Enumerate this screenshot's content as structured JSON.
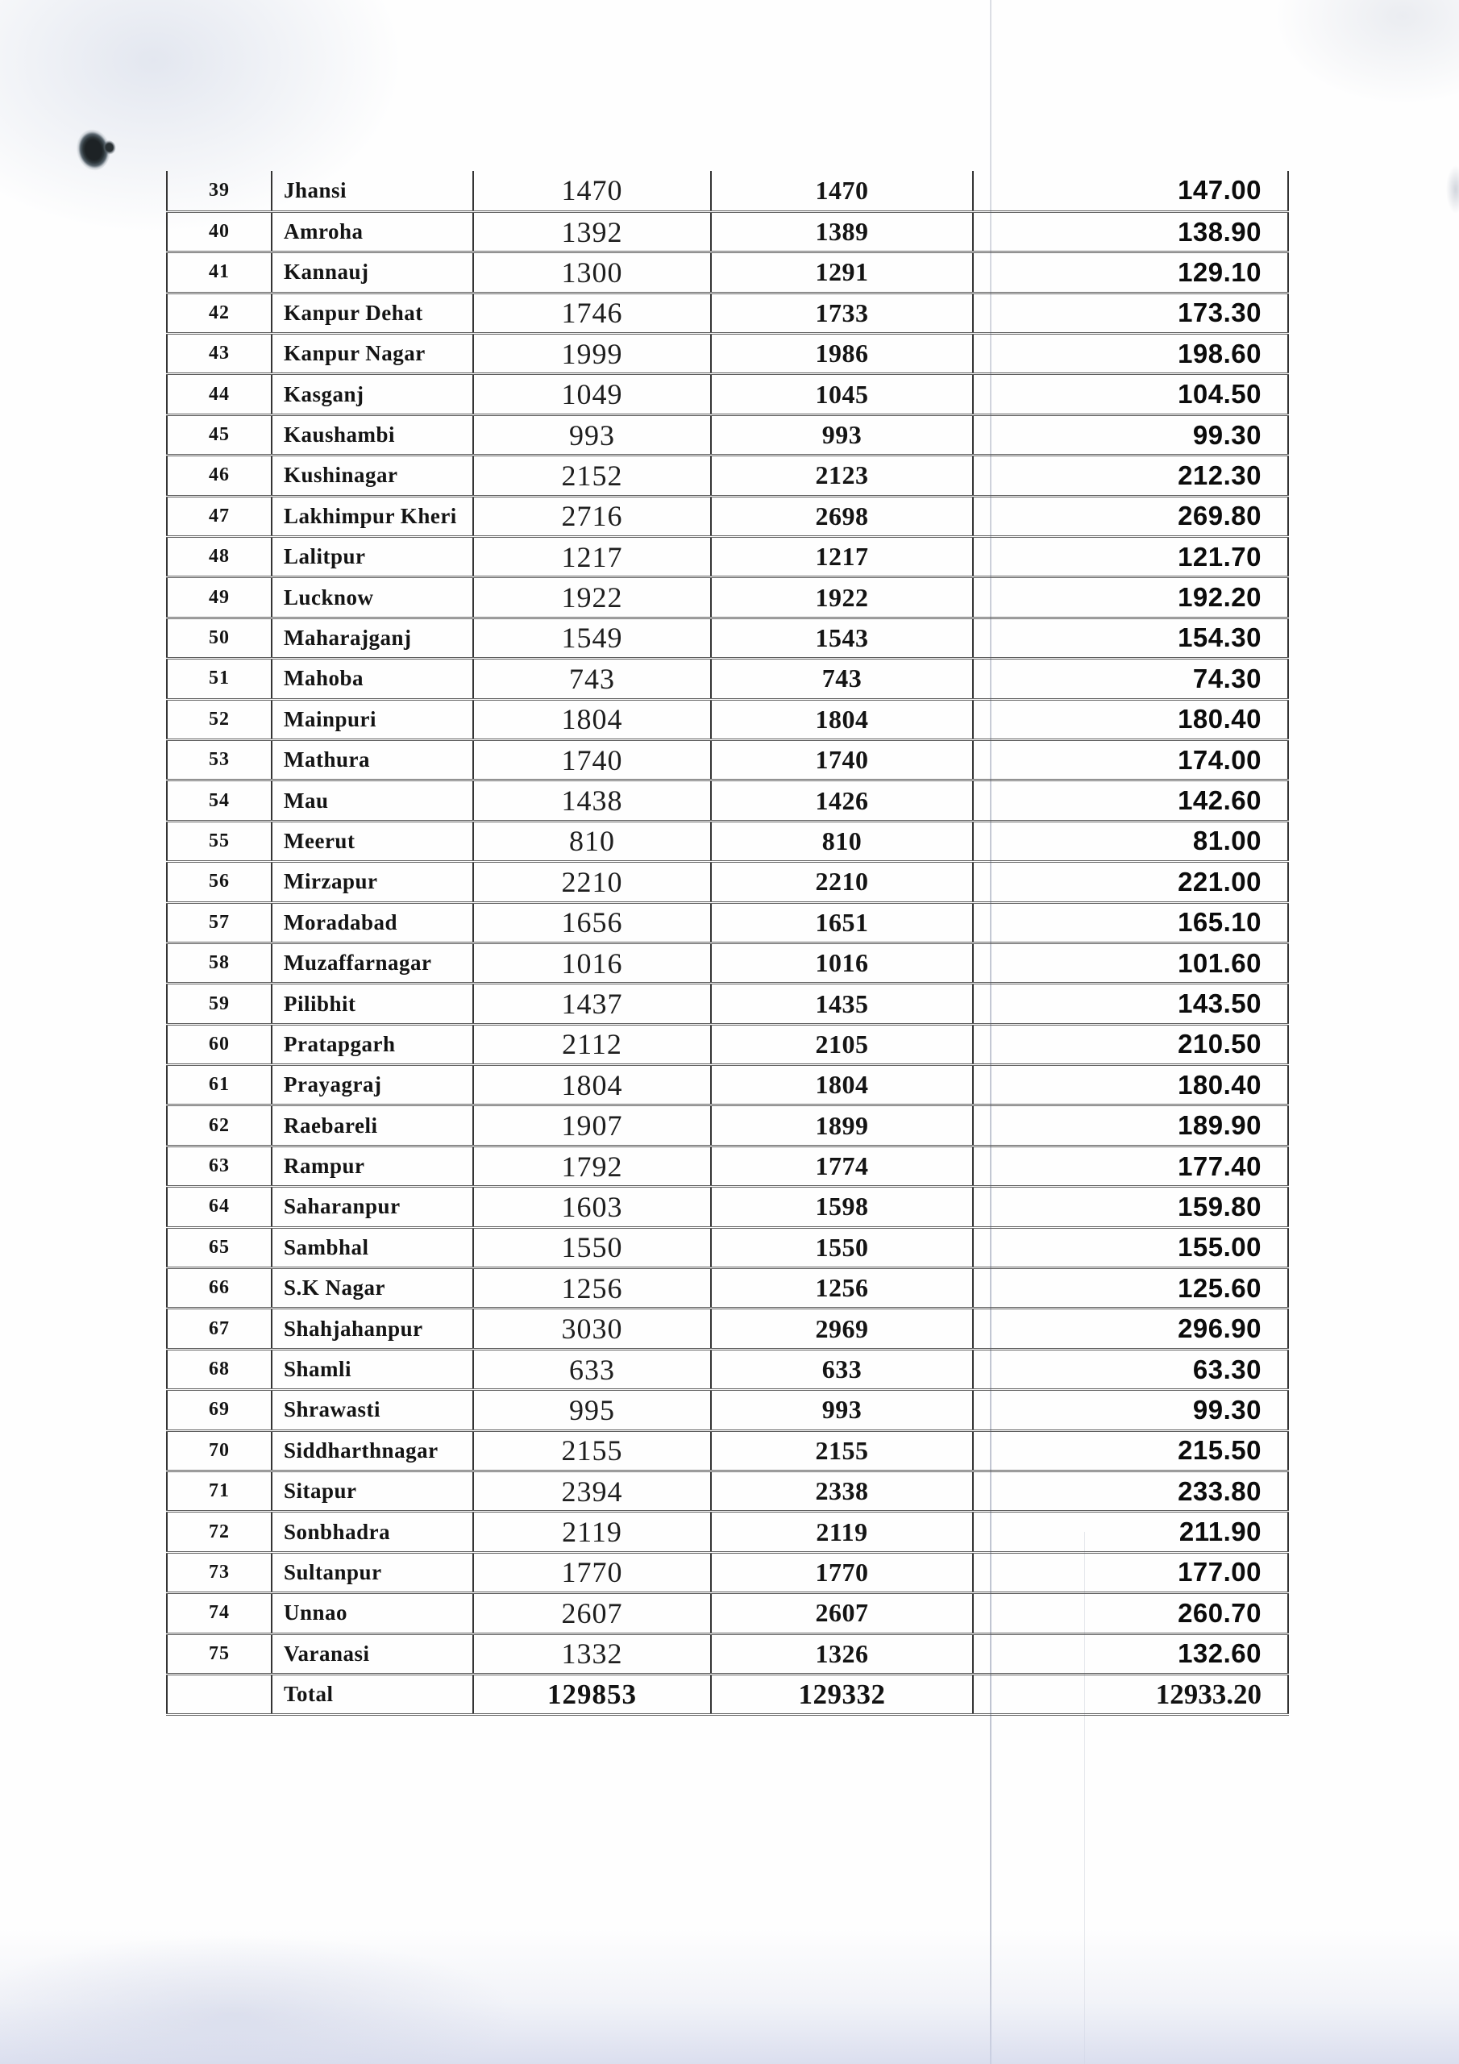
{
  "document": {
    "type": "scanned-table-page",
    "table": {
      "columns": [
        "serial_no",
        "district",
        "count_1",
        "count_2",
        "amount"
      ],
      "rows": [
        [
          "39",
          "Jhansi",
          "1470",
          "1470",
          "147.00"
        ],
        [
          "40",
          "Amroha",
          "1392",
          "1389",
          "138.90"
        ],
        [
          "41",
          "Kannauj",
          "1300",
          "1291",
          "129.10"
        ],
        [
          "42",
          "Kanpur Dehat",
          "1746",
          "1733",
          "173.30"
        ],
        [
          "43",
          "Kanpur Nagar",
          "1999",
          "1986",
          "198.60"
        ],
        [
          "44",
          "Kasganj",
          "1049",
          "1045",
          "104.50"
        ],
        [
          "45",
          "Kaushambi",
          "993",
          "993",
          "99.30"
        ],
        [
          "46",
          "Kushinagar",
          "2152",
          "2123",
          "212.30"
        ],
        [
          "47",
          "Lakhimpur Kheri",
          "2716",
          "2698",
          "269.80"
        ],
        [
          "48",
          "Lalitpur",
          "1217",
          "1217",
          "121.70"
        ],
        [
          "49",
          "Lucknow",
          "1922",
          "1922",
          "192.20"
        ],
        [
          "50",
          "Maharajganj",
          "1549",
          "1543",
          "154.30"
        ],
        [
          "51",
          "Mahoba",
          "743",
          "743",
          "74.30"
        ],
        [
          "52",
          "Mainpuri",
          "1804",
          "1804",
          "180.40"
        ],
        [
          "53",
          "Mathura",
          "1740",
          "1740",
          "174.00"
        ],
        [
          "54",
          "Mau",
          "1438",
          "1426",
          "142.60"
        ],
        [
          "55",
          "Meerut",
          "810",
          "810",
          "81.00"
        ],
        [
          "56",
          "Mirzapur",
          "2210",
          "2210",
          "221.00"
        ],
        [
          "57",
          "Moradabad",
          "1656",
          "1651",
          "165.10"
        ],
        [
          "58",
          "Muzaffarnagar",
          "1016",
          "1016",
          "101.60"
        ],
        [
          "59",
          "Pilibhit",
          "1437",
          "1435",
          "143.50"
        ],
        [
          "60",
          "Pratapgarh",
          "2112",
          "2105",
          "210.50"
        ],
        [
          "61",
          "Prayagraj",
          "1804",
          "1804",
          "180.40"
        ],
        [
          "62",
          "Raebareli",
          "1907",
          "1899",
          "189.90"
        ],
        [
          "63",
          "Rampur",
          "1792",
          "1774",
          "177.40"
        ],
        [
          "64",
          "Saharanpur",
          "1603",
          "1598",
          "159.80"
        ],
        [
          "65",
          "Sambhal",
          "1550",
          "1550",
          "155.00"
        ],
        [
          "66",
          "S.K Nagar",
          "1256",
          "1256",
          "125.60"
        ],
        [
          "67",
          "Shahjahanpur",
          "3030",
          "2969",
          "296.90"
        ],
        [
          "68",
          "Shamli",
          "633",
          "633",
          "63.30"
        ],
        [
          "69",
          "Shrawasti",
          "995",
          "993",
          "99.30"
        ],
        [
          "70",
          "Siddharthnagar",
          "2155",
          "2155",
          "215.50"
        ],
        [
          "71",
          "Sitapur",
          "2394",
          "2338",
          "233.80"
        ],
        [
          "72",
          "Sonbhadra",
          "2119",
          "2119",
          "211.90"
        ],
        [
          "73",
          "Sultanpur",
          "1770",
          "1770",
          "177.00"
        ],
        [
          "74",
          "Unnao",
          "2607",
          "2607",
          "260.70"
        ],
        [
          "75",
          "Varanasi",
          "1332",
          "1326",
          "132.60"
        ]
      ],
      "total_row": [
        "",
        "Total",
        "129853",
        "129332",
        "12933.20"
      ]
    },
    "artifacts": {
      "ink_blob_color": "#1d2225",
      "fold_line_color": "#9aa2b6",
      "bottom_shade_color": "#cfd4e9"
    }
  }
}
